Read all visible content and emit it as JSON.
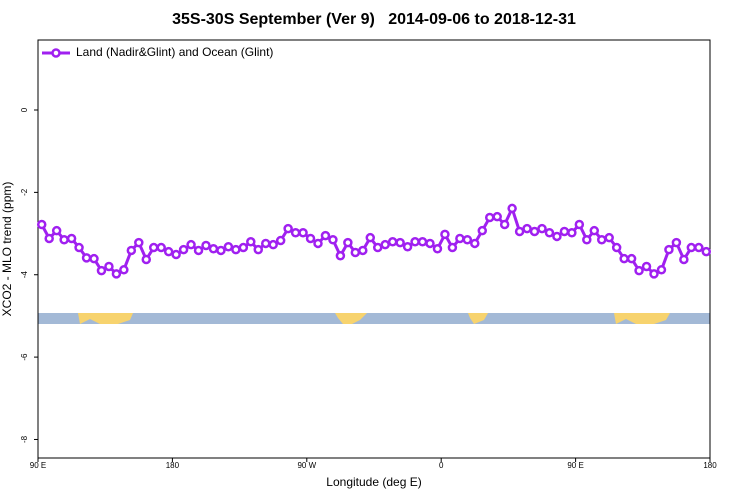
{
  "chart_data": {
    "type": "line",
    "title": "35S-30S September (Ver 9)   2014-09-06 to 2018-12-31",
    "x_label": "Longitude (deg E)",
    "y_label": "XCO2 - MLO trend (ppm)",
    "legend": "top-left",
    "xlim": [
      90,
      540
    ],
    "ylim": [
      -8.45,
      1.7
    ],
    "xticks": [
      {
        "value": 90,
        "label": "90 E"
      },
      180,
      {
        "value": 270,
        "label": "90 W"
      },
      {
        "value": 360,
        "label": "0"
      },
      {
        "value": 450,
        "label": "90 E"
      },
      {
        "value": 540,
        "label": "180"
      }
    ],
    "yticks": [
      0,
      -2,
      -4,
      -6,
      -8
    ],
    "x": [
      92.5,
      97.5,
      102.5,
      107.5,
      112.5,
      117.5,
      122.5,
      127.5,
      132.5,
      137.5,
      142.5,
      147.5,
      152.5,
      157.5,
      162.5,
      167.5,
      172.5,
      177.5,
      182.5,
      187.5,
      192.5,
      197.5,
      202.5,
      207.5,
      212.5,
      217.5,
      222.5,
      227.5,
      232.5,
      237.5,
      242.5,
      247.5,
      252.5,
      257.5,
      262.5,
      267.5,
      272.5,
      277.5,
      282.5,
      287.5,
      292.5,
      297.5,
      302.5,
      307.5,
      312.5,
      317.5,
      322.5,
      327.5,
      332.5,
      337.5,
      342.5,
      347.5,
      352.5,
      357.5,
      362.5,
      367.5,
      372.5,
      377.5,
      382.5,
      387.5,
      392.5,
      397.5,
      402.5,
      407.5,
      412.5,
      417.5,
      422.5,
      427.5,
      432.5,
      437.5,
      442.5,
      447.5,
      452.5,
      457.5,
      462.5,
      467.5,
      472.5,
      477.5,
      482.5,
      487.5,
      492.5,
      497.5,
      502.5,
      507.5,
      512.5,
      517.5,
      522.5,
      527.5,
      532.5,
      537.5
    ],
    "series": [
      {
        "name": "Land (Nadir&Glint) and Ocean (Glint)",
        "color": "#a020f0",
        "values": [
          -2.78,
          -3.12,
          -2.93,
          -3.15,
          -3.12,
          -3.34,
          -3.59,
          -3.61,
          -3.9,
          -3.8,
          -3.98,
          -3.88,
          -3.41,
          -3.22,
          -3.63,
          -3.34,
          -3.34,
          -3.44,
          -3.51,
          -3.39,
          -3.27,
          -3.41,
          -3.29,
          -3.37,
          -3.41,
          -3.32,
          -3.39,
          -3.34,
          -3.2,
          -3.39,
          -3.24,
          -3.27,
          -3.17,
          -2.88,
          -2.98,
          -2.98,
          -3.12,
          -3.24,
          -3.05,
          -3.15,
          -3.54,
          -3.22,
          -3.46,
          -3.41,
          -3.1,
          -3.34,
          -3.27,
          -3.2,
          -3.22,
          -3.32,
          -3.2,
          -3.2,
          -3.24,
          -3.37,
          -3.02,
          -3.34,
          -3.12,
          -3.15,
          -3.24,
          -2.93,
          -2.61,
          -2.59,
          -2.78,
          -2.39,
          -2.95,
          -2.88,
          -2.95,
          -2.88,
          -2.98,
          -3.07,
          -2.95,
          -2.98,
          -2.78,
          -3.15,
          -2.93,
          -3.15,
          -3.1,
          -3.34,
          -3.61,
          -3.61,
          -3.9,
          -3.8,
          -3.98,
          -3.88,
          -3.39,
          -3.22,
          -3.63,
          -3.34,
          -3.34,
          -3.44
        ]
      }
    ]
  }
}
